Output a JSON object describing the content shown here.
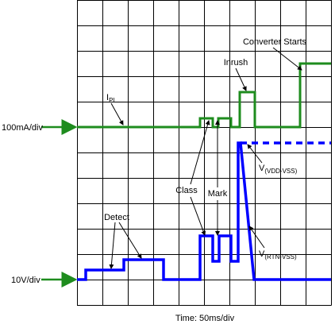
{
  "axis_labels": {
    "current_scale": "100mA/div",
    "voltage_scale": "10V/div",
    "time_scale": "Time: 50ms/div"
  },
  "annotations": {
    "ipi": {
      "main": "I",
      "sub": "PI"
    },
    "converter_starts": "Converter Starts",
    "inrush": "Inrush",
    "class": "Class",
    "mark": "Mark",
    "detect": "Detect",
    "v_vdd_vss": {
      "main": "V",
      "sub": "(VDD-VSS)"
    },
    "v_rtn_vss": {
      "main": "V",
      "sub": "(RTN-VSS)"
    }
  }
}
